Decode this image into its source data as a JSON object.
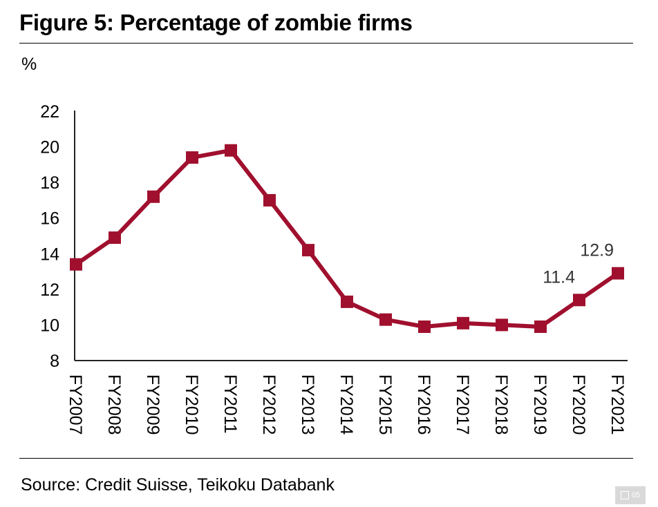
{
  "chart_data": {
    "type": "line",
    "title": "Figure 5: Percentage of zombie firms",
    "ylabel": "%",
    "xlabel": "",
    "categories": [
      "FY2007",
      "FY2008",
      "FY2009",
      "FY2010",
      "FY2011",
      "FY2012",
      "FY2013",
      "FY2014",
      "FY2015",
      "FY2016",
      "FY2017",
      "FY2018",
      "FY2019",
      "FY2020",
      "FY2021"
    ],
    "series": [
      {
        "values": [
          13.4,
          14.9,
          17.2,
          19.4,
          19.8,
          17.0,
          14.2,
          11.3,
          10.3,
          9.9,
          10.1,
          10.0,
          9.9,
          11.4,
          12.9
        ]
      }
    ],
    "ylim": [
      8,
      22
    ],
    "yticks": [
      "8",
      "10",
      "12",
      "14",
      "16",
      "18",
      "20",
      "22"
    ],
    "data_labels": [
      {
        "category": "FY2020",
        "text": "11.4"
      },
      {
        "category": "FY2021",
        "text": "12.9"
      }
    ],
    "grid": false,
    "legend": "none",
    "line_color": "#a0102e",
    "source": "Source: Credit Suisse, Teikoku Databank"
  },
  "badge": {
    "label": "05",
    "icon": "slides-icon"
  }
}
